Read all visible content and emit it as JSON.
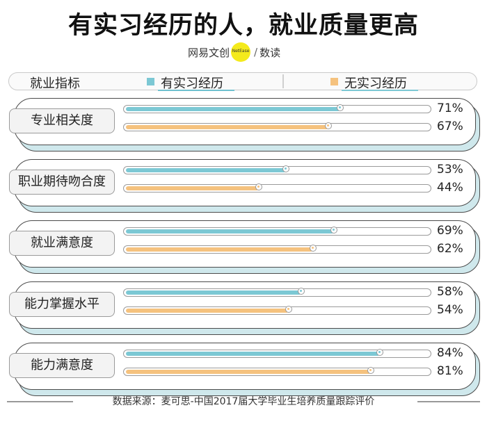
{
  "title": "有实习经历的人，就业质量更高",
  "brand": {
    "left": "网易文创",
    "dot_text": "NetEase",
    "right": "数读",
    "dot_color": "#f4ea1c"
  },
  "source": "数据来源：麦可思-中国2017届大学毕业生培养质量跟踪评价",
  "colors": {
    "series_a": "#7cc8d4",
    "series_b": "#f5c27e"
  },
  "chart_data": {
    "type": "bar",
    "orientation": "horizontal",
    "title": "有实习经历的人，就业质量更高",
    "category_header": "就业指标",
    "categories": [
      "专业相关度",
      "职业期待吻合度",
      "就业满意度",
      "能力掌握水平",
      "能力满意度"
    ],
    "series": [
      {
        "name": "有实习经历",
        "values": [
          71,
          53,
          69,
          58,
          84
        ]
      },
      {
        "name": "无实习经历",
        "values": [
          67,
          44,
          62,
          54,
          81
        ]
      }
    ],
    "value_labels": [
      [
        "71%",
        "67%"
      ],
      [
        "53%",
        "44%"
      ],
      [
        "69%",
        "62%"
      ],
      [
        "58%",
        "54%"
      ],
      [
        "84%",
        "81%"
      ]
    ],
    "xlim": [
      0,
      100
    ],
    "unit": "%",
    "legend": "top"
  }
}
